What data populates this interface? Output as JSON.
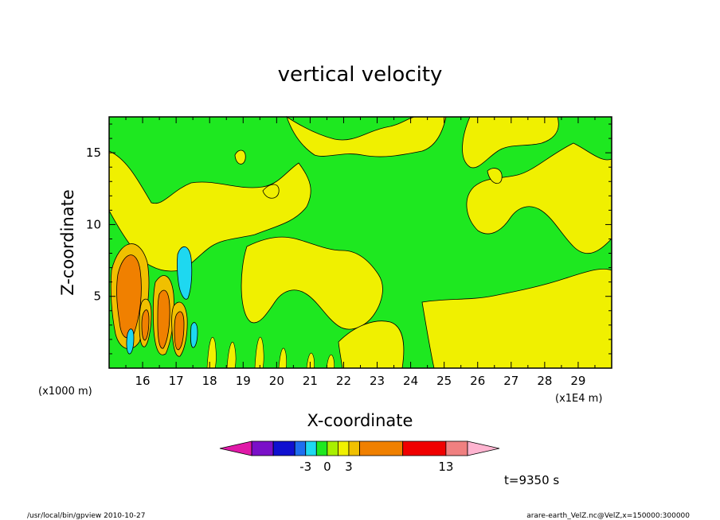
{
  "chart_data": {
    "type": "contour",
    "title": "vertical velocity",
    "xlabel": "X-coordinate",
    "ylabel": "Z-coordinate",
    "x_unit": "(x1E4 m)",
    "y_unit": "(x1000 m)",
    "x_ticks": [
      "16",
      "17",
      "18",
      "19",
      "20",
      "21",
      "22",
      "23",
      "24",
      "25",
      "26",
      "27",
      "28",
      "29"
    ],
    "y_ticks": [
      "5",
      "10",
      "15"
    ],
    "xlim": [
      15.0,
      30.0
    ],
    "ylim": [
      0.0,
      17.5
    ],
    "time_label": "t=9350 s",
    "colorbar": {
      "colors": [
        "#e019a8",
        "#7a10c8",
        "#1010d0",
        "#1e6ef0",
        "#1ed8f0",
        "#1ee820",
        "#a8f000",
        "#f0f000",
        "#f0c000",
        "#f08000",
        "#f00000",
        "#f08080",
        "#ffb4d0"
      ],
      "labels": [
        "-3",
        "0",
        "3",
        "13"
      ]
    },
    "regions": [
      {
        "level": "positive-weak",
        "color": "#f0f000"
      },
      {
        "level": "near-zero",
        "color": "#1ee820"
      },
      {
        "level": "positive-strong",
        "color": "#f08000"
      },
      {
        "level": "positive-mid",
        "color": "#f0c000"
      },
      {
        "level": "negative",
        "color": "#1ed8f0"
      }
    ]
  },
  "footer": {
    "left": "/usr/local/bin/gpview   2010-10-27",
    "right": "arare-earth_VelZ.nc@VelZ,x=150000:300000"
  }
}
